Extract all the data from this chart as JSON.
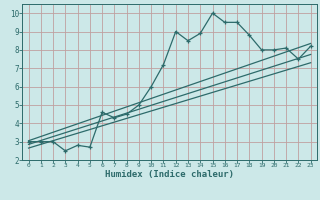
{
  "xlabel": "Humidex (Indice chaleur)",
  "xlim": [
    -0.5,
    23.5
  ],
  "ylim": [
    2,
    10.5
  ],
  "xticks": [
    0,
    1,
    2,
    3,
    4,
    5,
    6,
    7,
    8,
    9,
    10,
    11,
    12,
    13,
    14,
    15,
    16,
    17,
    18,
    19,
    20,
    21,
    22,
    23
  ],
  "yticks": [
    2,
    3,
    4,
    5,
    6,
    7,
    8,
    9,
    10
  ],
  "line_color": "#2d6b6b",
  "bg_color": "#cce8e8",
  "grid_color": "#c0a0a0",
  "jagged_x": [
    0,
    1,
    2,
    3,
    4,
    5,
    6,
    7,
    8,
    9,
    10,
    11,
    12,
    13,
    14,
    15,
    16,
    17,
    18,
    19,
    20,
    21,
    22,
    23
  ],
  "jagged_y": [
    3.0,
    3.0,
    3.0,
    2.5,
    2.8,
    2.7,
    4.6,
    4.3,
    4.5,
    5.0,
    6.0,
    7.2,
    9.0,
    8.5,
    8.9,
    10.0,
    9.5,
    9.5,
    8.8,
    8.0,
    8.0,
    8.1,
    7.5,
    8.2
  ],
  "trend1_x": [
    0,
    23
  ],
  "trend1_y": [
    3.05,
    8.35
  ],
  "trend2_x": [
    0,
    23
  ],
  "trend2_y": [
    2.85,
    7.75
  ],
  "trend3_x": [
    0,
    23
  ],
  "trend3_y": [
    2.65,
    7.3
  ]
}
